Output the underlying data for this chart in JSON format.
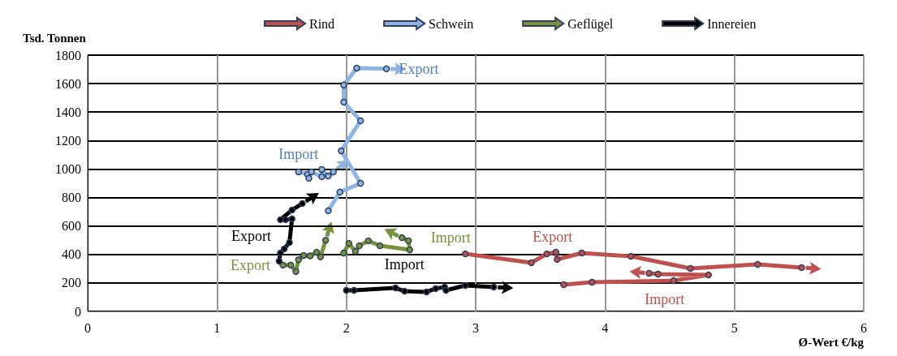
{
  "chart_data": {
    "type": "line",
    "xlabel": "Ø-Wert €/kg",
    "ylabel": "Tsd. Tonnen",
    "xlim": [
      0,
      6
    ],
    "xticks": [
      0,
      1,
      2,
      3,
      4,
      5,
      6
    ],
    "ylim": [
      0,
      1800
    ],
    "yticks": [
      0,
      200,
      400,
      600,
      800,
      1000,
      1200,
      1400,
      1600,
      1800
    ],
    "grid": true,
    "legend": "top",
    "marker": "circle",
    "line_style": "solid",
    "series": [
      {
        "name": "Rind",
        "color": "#c0504d",
        "x": [
          2.92,
          3.43,
          3.55,
          3.62,
          3.63,
          3.82,
          4.2,
          4.66,
          5.18,
          5.52,
          null,
          3.68,
          3.9,
          4.53,
          4.8,
          4.41,
          4.34
        ],
        "values": [
          404,
          342,
          404,
          416,
          365,
          410,
          387,
          302,
          330,
          308,
          null,
          188,
          205,
          216,
          256,
          262,
          268
        ]
      },
      {
        "name": "Schwein",
        "color": "#8db4e2",
        "x": [
          1.86,
          1.95,
          2.11,
          1.96,
          2.11,
          1.98,
          1.98,
          2.08,
          2.31,
          null,
          1.63,
          1.7,
          1.71,
          1.73,
          1.81,
          1.81,
          1.86,
          1.9
        ],
        "values": [
          707,
          838,
          900,
          1128,
          1339,
          1470,
          1590,
          1709,
          1704,
          null,
          980,
          963,
          935,
          980,
          946,
          997,
          951,
          980
        ]
      },
      {
        "name": "Geflügel",
        "color": "#77933c",
        "x": [
          1.51,
          1.57,
          1.61,
          1.63,
          1.67,
          1.72,
          1.77,
          1.8,
          1.84,
          null,
          1.98,
          2.02,
          2.07,
          2.1,
          2.17,
          2.26,
          2.49,
          2.48,
          2.43
        ],
        "values": [
          325,
          325,
          280,
          363,
          393,
          390,
          415,
          383,
          500,
          null,
          410,
          478,
          421,
          461,
          496,
          461,
          433,
          496,
          518
        ]
      },
      {
        "name": "Innereien",
        "color": "#000000",
        "x": [
          1.48,
          1.49,
          1.52,
          1.56,
          1.58,
          1.53,
          1.49,
          1.58,
          1.66,
          null,
          2.0,
          2.06,
          2.38,
          2.45,
          2.62,
          2.69,
          2.76,
          2.77,
          2.92,
          3.14
        ],
        "values": [
          353,
          410,
          439,
          484,
          650,
          644,
          644,
          712,
          758,
          null,
          148,
          148,
          165,
          142,
          137,
          160,
          171,
          148,
          182,
          171
        ]
      }
    ],
    "annotations": [
      {
        "text": "Export",
        "x": 2.31,
        "y": 1704
      },
      {
        "text": "Import",
        "x": 1.63,
        "y": 980
      },
      {
        "text": "Export",
        "x": 1.49,
        "y": 644
      },
      {
        "text": "Import",
        "x": 2.43,
        "y": 518
      },
      {
        "text": "Export",
        "x": 1.51,
        "y": 325
      },
      {
        "text": "Import",
        "x": 2.45,
        "y": 142
      },
      {
        "text": "Export",
        "x": 3.82,
        "y": 410
      },
      {
        "text": "Import",
        "x": 4.8,
        "y": 256
      }
    ]
  }
}
